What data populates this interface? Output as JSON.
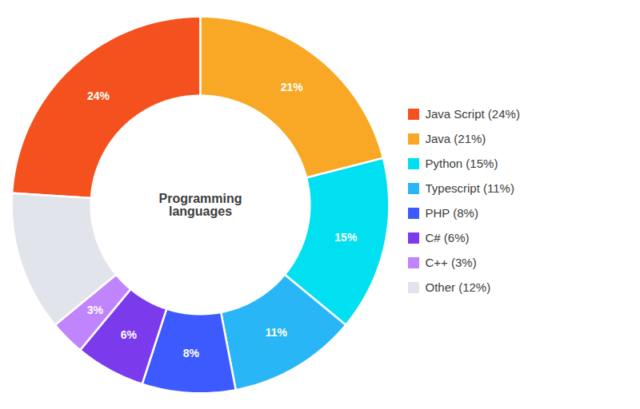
{
  "chart_data": {
    "type": "pie",
    "title": "Programming languages",
    "categories": [
      "Java Script (24%)",
      "Java (21%)",
      "Python (15%)",
      "Typescript (11%)",
      "PHP (8%)",
      "C# (6%)",
      "C++ (3%)",
      "Other (12%)"
    ],
    "values": [
      24,
      21,
      15,
      11,
      8,
      6,
      3,
      12
    ],
    "value_labels": [
      "24%",
      "21%",
      "15%",
      "11%",
      "8%",
      "6%",
      "3%",
      null
    ],
    "colors": [
      "#F4511E",
      "#F9A825",
      "#00E0F0",
      "#29B6F6",
      "#3D5AFE",
      "#7C3AED",
      "#C084FC",
      "#E2E4EC"
    ],
    "data_labels": true,
    "legend": "right"
  }
}
